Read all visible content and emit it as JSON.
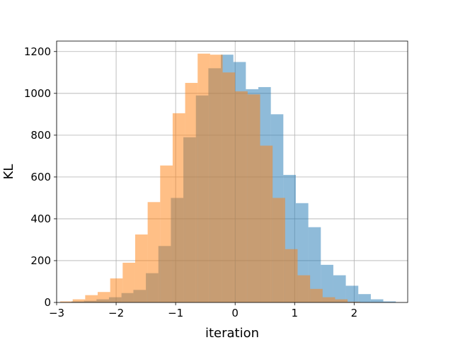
{
  "chart_data": {
    "type": "bar",
    "histogram": true,
    "title": "",
    "xlabel": "iteration",
    "ylabel": "KL",
    "xlim": [
      -3.0,
      2.9
    ],
    "ylim": [
      0,
      1250
    ],
    "xticks": [
      -3,
      -2,
      -1,
      0,
      1,
      2
    ],
    "yticks": [
      0,
      200,
      400,
      600,
      800,
      1000,
      1200
    ],
    "grid": true,
    "series": [
      {
        "color": "#1f77b4",
        "opacity": 0.5,
        "bin_edges": [
          -2.75,
          -2.54,
          -2.33,
          -2.12,
          -1.91,
          -1.71,
          -1.5,
          -1.29,
          -1.08,
          -0.87,
          -0.66,
          -0.45,
          -0.24,
          -0.03,
          0.18,
          0.39,
          0.6,
          0.81,
          1.02,
          1.23,
          1.44,
          1.65,
          1.86,
          2.07,
          2.28,
          2.49,
          2.7
        ],
        "values": [
          5,
          8,
          15,
          25,
          45,
          60,
          140,
          270,
          500,
          790,
          990,
          1120,
          1185,
          1150,
          1020,
          1030,
          900,
          610,
          475,
          360,
          180,
          130,
          80,
          40,
          15,
          5
        ]
      },
      {
        "color": "#ff7f0e",
        "opacity": 0.5,
        "bin_edges": [
          -2.94,
          -2.73,
          -2.52,
          -2.31,
          -2.1,
          -1.89,
          -1.68,
          -1.47,
          -1.26,
          -1.05,
          -0.84,
          -0.63,
          -0.42,
          -0.21,
          0.0,
          0.21,
          0.42,
          0.63,
          0.84,
          1.05,
          1.26,
          1.47,
          1.68,
          1.89,
          2.1
        ],
        "values": [
          5,
          15,
          35,
          50,
          115,
          190,
          325,
          480,
          655,
          905,
          1050,
          1190,
          1185,
          1100,
          1010,
          995,
          750,
          500,
          255,
          130,
          65,
          25,
          15,
          3
        ]
      }
    ]
  }
}
